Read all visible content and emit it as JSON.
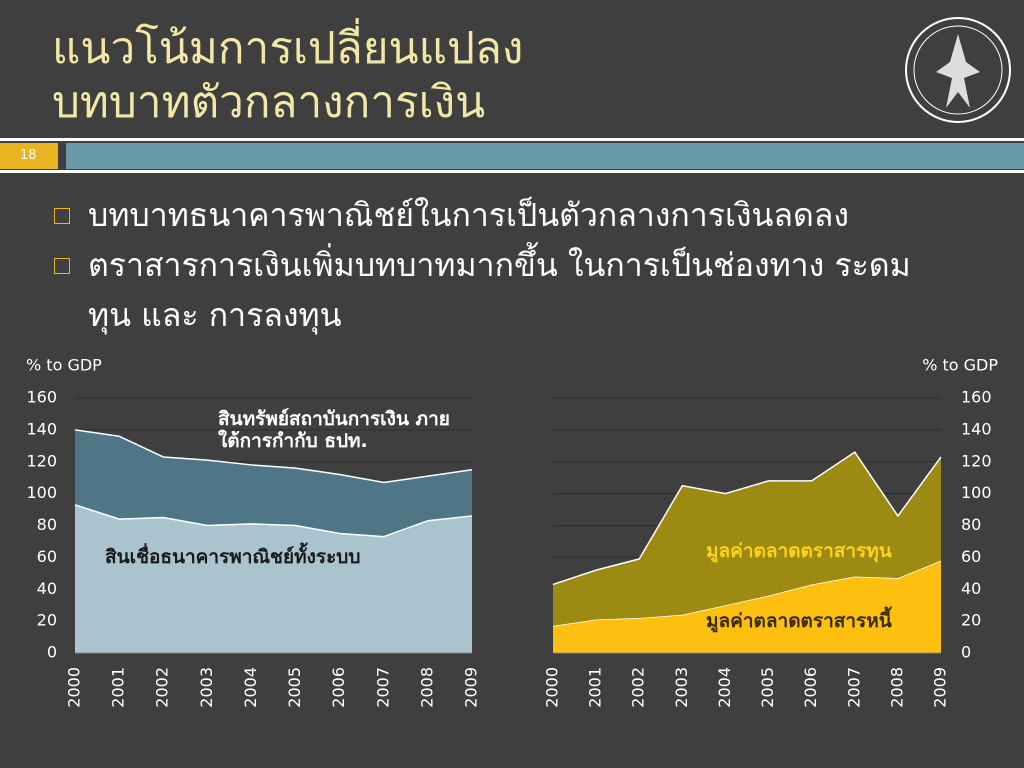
{
  "slide": {
    "title": [
      "แนวโน้มการเปลี่ยนแปลง",
      "บทบาทตัวกลางการเงิน"
    ],
    "number": "18",
    "bullets": [
      "บทบาทธนาคารพาณิชย์ในการเป็นตัวกลางการเงินลดลง",
      "ตราสารการเงินเพิ่มบทบาทมากขึ้น ในการเป็นช่องทาง ระดมทุน และ การลงทุน"
    ]
  },
  "chart_data": [
    {
      "type": "area",
      "ylabel": "% to GDP",
      "yaxis_side": "left",
      "grid": true,
      "categories": [
        "2000",
        "2001",
        "2002",
        "2003",
        "2004",
        "2005",
        "2006",
        "2007",
        "2008",
        "2009"
      ],
      "series": [
        {
          "name": "สินทรัพย์สถาบันการเงิน ภายใต้การกำกับ ธปท.",
          "color": "#4e7686",
          "values": [
            140,
            136,
            123,
            121,
            118,
            116,
            112,
            107,
            111,
            115
          ]
        },
        {
          "name": "สินเชื่อธนาคารพาณิชย์ทั้งระบบ",
          "color": "#a9c4cf",
          "values": [
            93,
            84,
            85,
            80,
            81,
            80,
            75,
            73,
            83,
            86
          ]
        }
      ],
      "ylim": [
        0,
        160
      ],
      "yticks": [
        0,
        20,
        40,
        60,
        80,
        100,
        120,
        140,
        160
      ]
    },
    {
      "type": "stacked_area",
      "ylabel": "% to GDP",
      "yaxis_side": "right",
      "grid": true,
      "categories": [
        "2000",
        "2001",
        "2002",
        "2003",
        "2004",
        "2005",
        "2006",
        "2007",
        "2008",
        "2009"
      ],
      "series": [
        {
          "name": "มูลค่าตลาดตราสารหนี้",
          "color": "#fdc010",
          "values": [
            17,
            21,
            22,
            24,
            30,
            36,
            43,
            48,
            47,
            58
          ]
        },
        {
          "name": "มูลค่าตลาดตราสารทุน",
          "color": "#9c8a12",
          "values": [
            26,
            31,
            37,
            81,
            70,
            72,
            65,
            78,
            39,
            65
          ]
        }
      ],
      "ylim": [
        0,
        160
      ],
      "yticks": [
        0,
        20,
        40,
        60,
        80,
        100,
        120,
        140,
        160
      ]
    }
  ]
}
